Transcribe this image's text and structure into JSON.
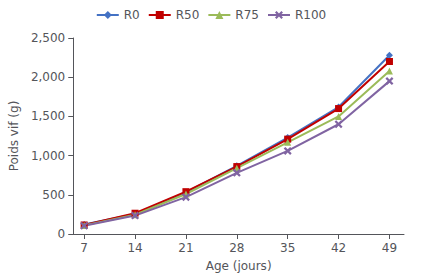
{
  "chart_data": {
    "type": "line",
    "xlabel": "Age (jours)",
    "ylabel": "Poids vif (g)",
    "x": [
      7,
      14,
      21,
      28,
      35,
      42,
      49
    ],
    "series": [
      {
        "name": "R0",
        "color": "#4472C4",
        "marker": "diamond",
        "values": [
          120,
          255,
          530,
          870,
          1230,
          1620,
          2280
        ]
      },
      {
        "name": "R50",
        "color": "#C00000",
        "marker": "square",
        "values": [
          115,
          265,
          540,
          860,
          1210,
          1600,
          2200
        ]
      },
      {
        "name": "R75",
        "color": "#9BBB59",
        "marker": "triangle",
        "values": [
          110,
          245,
          510,
          840,
          1170,
          1500,
          2080
        ]
      },
      {
        "name": "R100",
        "color": "#8064A2",
        "marker": "x",
        "values": [
          105,
          235,
          470,
          780,
          1060,
          1400,
          1950
        ]
      }
    ],
    "xlim": [
      5.5,
      51
    ],
    "xticks": [
      7,
      14,
      21,
      28,
      35,
      42,
      49
    ],
    "ylim": [
      0,
      2500
    ],
    "yticks": [
      0,
      500,
      1000,
      1500,
      2000,
      2500
    ],
    "grid": false,
    "legend": "top"
  }
}
